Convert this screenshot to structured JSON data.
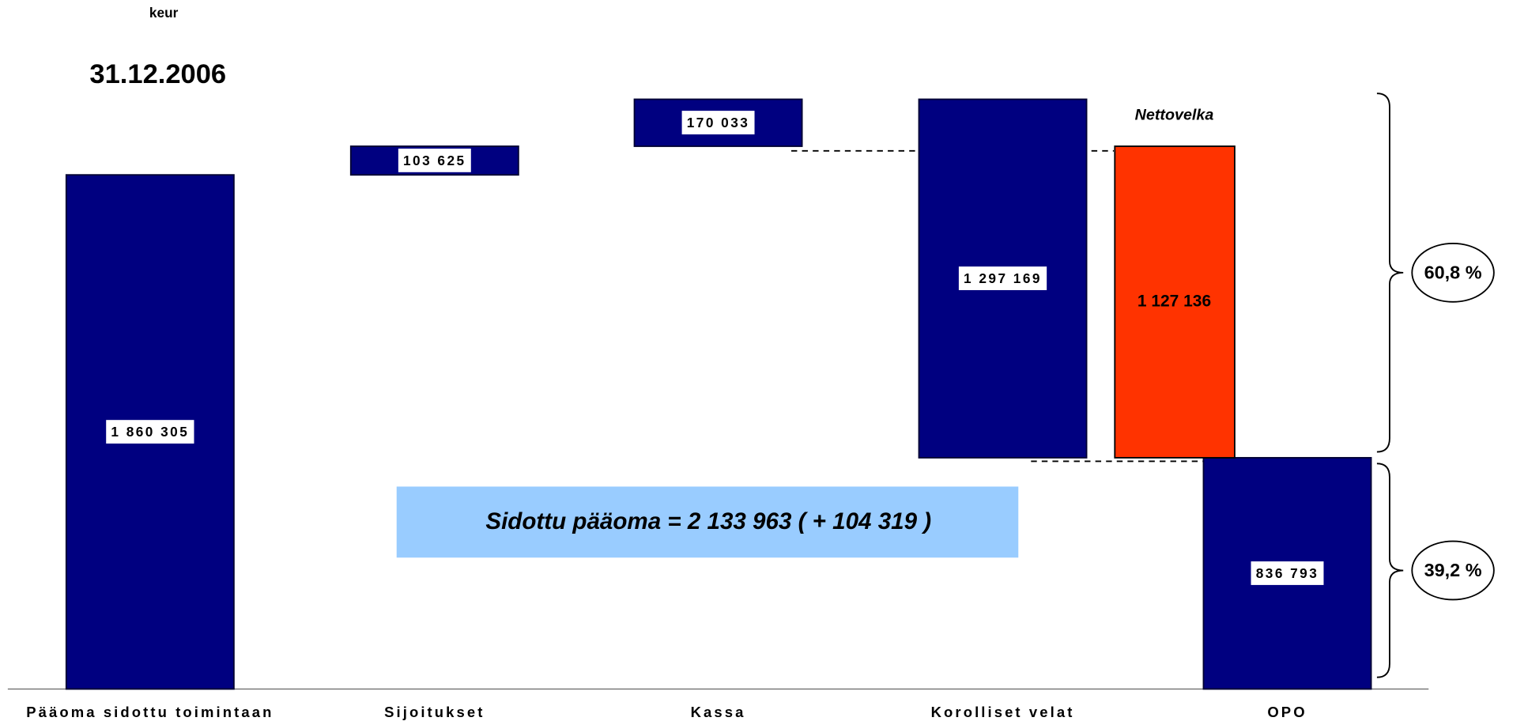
{
  "chart_data": {
    "type": "waterfall",
    "unit": "keur",
    "title": "31.12.2006",
    "categories": [
      "Pääoma sidottu toimintaan",
      "Sijoitukset",
      "Kassa",
      "Korolliset velat",
      "OPO"
    ],
    "values": [
      1860305,
      103625,
      170033,
      1297169,
      836793
    ],
    "value_labels": [
      "1 860 305",
      "103 625",
      "170 033",
      "1 297 169",
      "836 793"
    ],
    "measure": [
      "absolute",
      "increase",
      "increase",
      "decrease",
      "absolute"
    ],
    "color": "#000080",
    "net_debt": {
      "label": "Nettovelka",
      "value": 1127136,
      "value_label": "1 127 136",
      "color": "#ff3300"
    },
    "annotation": "Sidottu pääoma  = 2 133 963  ( + 104 319 )",
    "shares": [
      {
        "value": 60.8,
        "label": "60,8 %"
      },
      {
        "value": 39.2,
        "label": "39,2 %"
      }
    ]
  }
}
